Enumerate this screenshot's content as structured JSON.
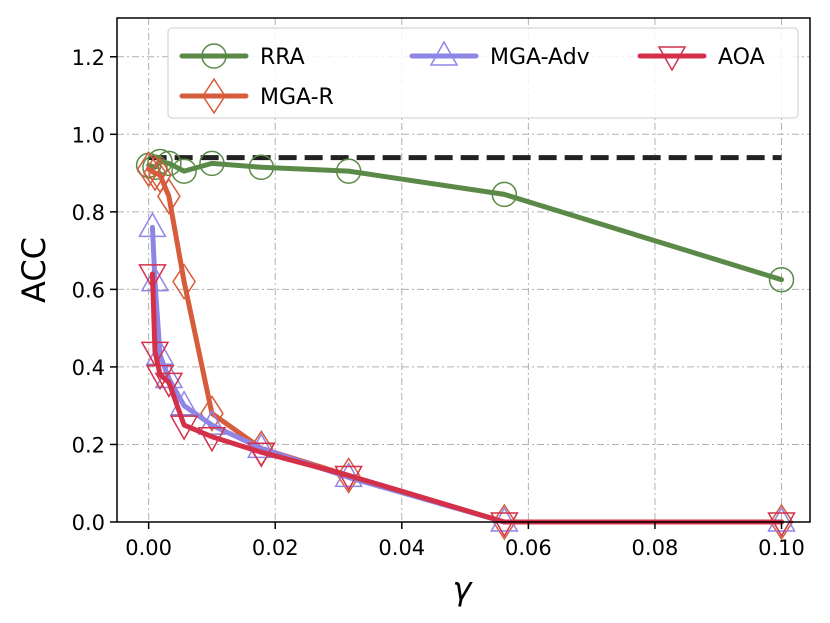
{
  "chart_data": {
    "type": "line",
    "title": "",
    "xlabel": "γ",
    "ylabel": "ACC",
    "xlim": [
      -0.005,
      0.1045
    ],
    "ylim": [
      0.0,
      1.3
    ],
    "xticks": [
      0.0,
      0.02,
      0.04,
      0.06,
      0.08,
      0.1
    ],
    "xtick_labels": [
      "0.00",
      "0.02",
      "0.04",
      "0.06",
      "0.08",
      "0.10"
    ],
    "yticks": [
      0.0,
      0.2,
      0.4,
      0.6,
      0.8,
      1.0,
      1.2
    ],
    "ytick_labels": [
      "0.0",
      "0.2",
      "0.4",
      "0.6",
      "0.8",
      "1.0",
      "1.2"
    ],
    "grid": true,
    "legend_position": "top",
    "reference_line": {
      "y": 0.94,
      "x_start": 0.0,
      "x_end": 0.1,
      "color": "#222222",
      "style": "dashed"
    },
    "series": [
      {
        "name": "RRA",
        "color": "#5b8a48",
        "marker": "circle",
        "x": [
          0.0,
          0.001,
          0.0018,
          0.0032,
          0.0056,
          0.01,
          0.0178,
          0.0316,
          0.0562,
          0.1
        ],
        "y": [
          0.92,
          0.915,
          0.93,
          0.925,
          0.905,
          0.925,
          0.915,
          0.905,
          0.845,
          0.625
        ]
      },
      {
        "name": "MGA-R",
        "color": "#d65c3c",
        "marker": "diamond",
        "x": [
          0.0,
          0.001,
          0.0018,
          0.0032,
          0.0056,
          0.01,
          0.0178,
          0.0316,
          0.0562,
          0.1
        ],
        "y": [
          0.91,
          0.9,
          0.895,
          0.84,
          0.62,
          0.28,
          0.19,
          0.12,
          0.0,
          0.0
        ]
      },
      {
        "name": "MGA-Adv",
        "color": "#8e85e6",
        "marker": "triangle-up",
        "x": [
          0.0006,
          0.001,
          0.0018,
          0.0032,
          0.0056,
          0.01,
          0.0178,
          0.0316,
          0.0562,
          0.1
        ],
        "y": [
          0.76,
          0.62,
          0.43,
          0.37,
          0.3,
          0.25,
          0.19,
          0.115,
          0.0,
          0.0
        ]
      },
      {
        "name": "AOA",
        "color": "#d4304a",
        "marker": "triangle-down",
        "x": [
          0.0006,
          0.001,
          0.0018,
          0.0032,
          0.0056,
          0.01,
          0.0178,
          0.0316,
          0.0562,
          0.1
        ],
        "y": [
          0.64,
          0.44,
          0.38,
          0.36,
          0.25,
          0.22,
          0.18,
          0.12,
          0.0,
          0.0
        ]
      }
    ]
  }
}
